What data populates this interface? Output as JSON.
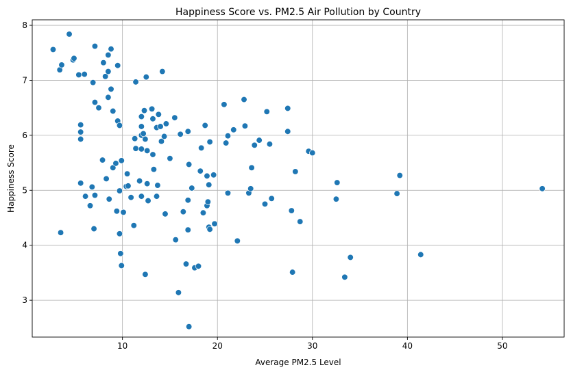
{
  "chart_data": {
    "type": "scatter",
    "title": "Happiness Score vs. PM2.5 Air Pollution by Country",
    "xlabel": "Average PM2.5 Level",
    "ylabel": "Happiness Score",
    "xlim": [
      0.5,
      56.5
    ],
    "ylim": [
      2.33,
      8.1
    ],
    "xticks": [
      10,
      20,
      30,
      40,
      50
    ],
    "yticks": [
      3,
      4,
      5,
      6,
      7,
      8
    ],
    "grid": true,
    "marker_color": "#1f77b4",
    "marker_edge": "#ffffff",
    "points": [
      [
        2.7,
        7.56
      ],
      [
        3.4,
        7.19
      ],
      [
        3.6,
        7.28
      ],
      [
        4.4,
        7.84
      ],
      [
        4.8,
        7.37
      ],
      [
        4.9,
        7.4
      ],
      [
        3.5,
        4.23
      ],
      [
        5.4,
        7.1
      ],
      [
        6.0,
        7.11
      ],
      [
        5.6,
        6.19
      ],
      [
        5.6,
        6.06
      ],
      [
        5.6,
        5.93
      ],
      [
        5.6,
        5.13
      ],
      [
        6.1,
        4.89
      ],
      [
        6.6,
        4.72
      ],
      [
        6.8,
        5.06
      ],
      [
        6.9,
        6.96
      ],
      [
        7.1,
        7.62
      ],
      [
        7.1,
        6.6
      ],
      [
        7.5,
        6.5
      ],
      [
        7.0,
        4.3
      ],
      [
        7.1,
        4.91
      ],
      [
        7.9,
        5.55
      ],
      [
        8.0,
        7.32
      ],
      [
        8.2,
        7.07
      ],
      [
        8.3,
        5.21
      ],
      [
        8.5,
        7.46
      ],
      [
        8.5,
        7.16
      ],
      [
        8.5,
        6.69
      ],
      [
        8.6,
        4.84
      ],
      [
        8.8,
        7.57
      ],
      [
        8.8,
        6.84
      ],
      [
        9.0,
        6.44
      ],
      [
        9.0,
        5.41
      ],
      [
        9.3,
        5.49
      ],
      [
        9.4,
        4.62
      ],
      [
        9.5,
        6.26
      ],
      [
        9.5,
        7.27
      ],
      [
        9.7,
        6.18
      ],
      [
        9.7,
        4.99
      ],
      [
        9.7,
        4.21
      ],
      [
        9.8,
        3.85
      ],
      [
        9.9,
        5.54
      ],
      [
        9.9,
        3.63
      ],
      [
        10.1,
        4.6
      ],
      [
        10.4,
        5.07
      ],
      [
        10.5,
        5.3
      ],
      [
        10.6,
        5.08
      ],
      [
        10.9,
        4.87
      ],
      [
        11.2,
        4.36
      ],
      [
        11.3,
        5.94
      ],
      [
        11.4,
        6.97
      ],
      [
        11.4,
        5.76
      ],
      [
        11.8,
        5.17
      ],
      [
        12.0,
        6.34
      ],
      [
        12.0,
        6.16
      ],
      [
        12.0,
        6.0
      ],
      [
        12.0,
        5.75
      ],
      [
        12.0,
        4.89
      ],
      [
        12.2,
        6.03
      ],
      [
        12.3,
        6.45
      ],
      [
        12.4,
        5.93
      ],
      [
        12.4,
        3.47
      ],
      [
        12.5,
        7.06
      ],
      [
        12.6,
        5.72
      ],
      [
        12.6,
        5.12
      ],
      [
        12.7,
        4.81
      ],
      [
        13.1,
        6.48
      ],
      [
        13.2,
        6.3
      ],
      [
        13.2,
        5.65
      ],
      [
        13.3,
        5.38
      ],
      [
        13.6,
        6.14
      ],
      [
        13.6,
        4.89
      ],
      [
        13.7,
        5.09
      ],
      [
        13.8,
        6.38
      ],
      [
        14.0,
        6.16
      ],
      [
        14.1,
        5.89
      ],
      [
        14.2,
        7.16
      ],
      [
        14.4,
        5.98
      ],
      [
        14.5,
        4.57
      ],
      [
        14.6,
        6.21
      ],
      [
        15.0,
        5.58
      ],
      [
        15.5,
        6.32
      ],
      [
        15.6,
        4.1
      ],
      [
        15.9,
        3.14
      ],
      [
        16.1,
        6.02
      ],
      [
        16.4,
        4.61
      ],
      [
        16.7,
        3.66
      ],
      [
        16.9,
        6.07
      ],
      [
        16.9,
        4.82
      ],
      [
        16.9,
        4.28
      ],
      [
        17.0,
        5.47
      ],
      [
        17.0,
        2.52
      ],
      [
        17.3,
        5.04
      ],
      [
        17.6,
        3.59
      ],
      [
        18.0,
        3.62
      ],
      [
        18.2,
        5.35
      ],
      [
        18.3,
        5.77
      ],
      [
        18.5,
        4.59
      ],
      [
        18.7,
        6.18
      ],
      [
        18.9,
        4.72
      ],
      [
        18.9,
        5.26
      ],
      [
        19.0,
        4.79
      ],
      [
        19.1,
        5.1
      ],
      [
        19.1,
        4.33
      ],
      [
        19.2,
        4.29
      ],
      [
        19.2,
        5.88
      ],
      [
        19.6,
        5.28
      ],
      [
        19.7,
        4.39
      ],
      [
        20.7,
        6.56
      ],
      [
        20.9,
        5.86
      ],
      [
        21.1,
        4.95
      ],
      [
        21.1,
        5.99
      ],
      [
        21.7,
        6.1
      ],
      [
        22.1,
        4.08
      ],
      [
        22.8,
        6.65
      ],
      [
        22.9,
        6.17
      ],
      [
        23.3,
        4.95
      ],
      [
        23.5,
        5.03
      ],
      [
        23.6,
        5.41
      ],
      [
        23.9,
        5.82
      ],
      [
        24.4,
        5.91
      ],
      [
        25.0,
        4.75
      ],
      [
        25.2,
        6.43
      ],
      [
        25.5,
        5.84
      ],
      [
        25.7,
        4.85
      ],
      [
        27.4,
        6.49
      ],
      [
        27.4,
        6.07
      ],
      [
        27.8,
        4.63
      ],
      [
        27.9,
        3.51
      ],
      [
        28.2,
        5.34
      ],
      [
        28.7,
        4.43
      ],
      [
        29.6,
        5.71
      ],
      [
        30.0,
        5.68
      ],
      [
        32.5,
        4.84
      ],
      [
        32.6,
        5.14
      ],
      [
        33.4,
        3.42
      ],
      [
        34.0,
        3.78
      ],
      [
        38.9,
        4.94
      ],
      [
        39.2,
        5.27
      ],
      [
        41.4,
        3.83
      ],
      [
        54.2,
        5.03
      ]
    ]
  }
}
